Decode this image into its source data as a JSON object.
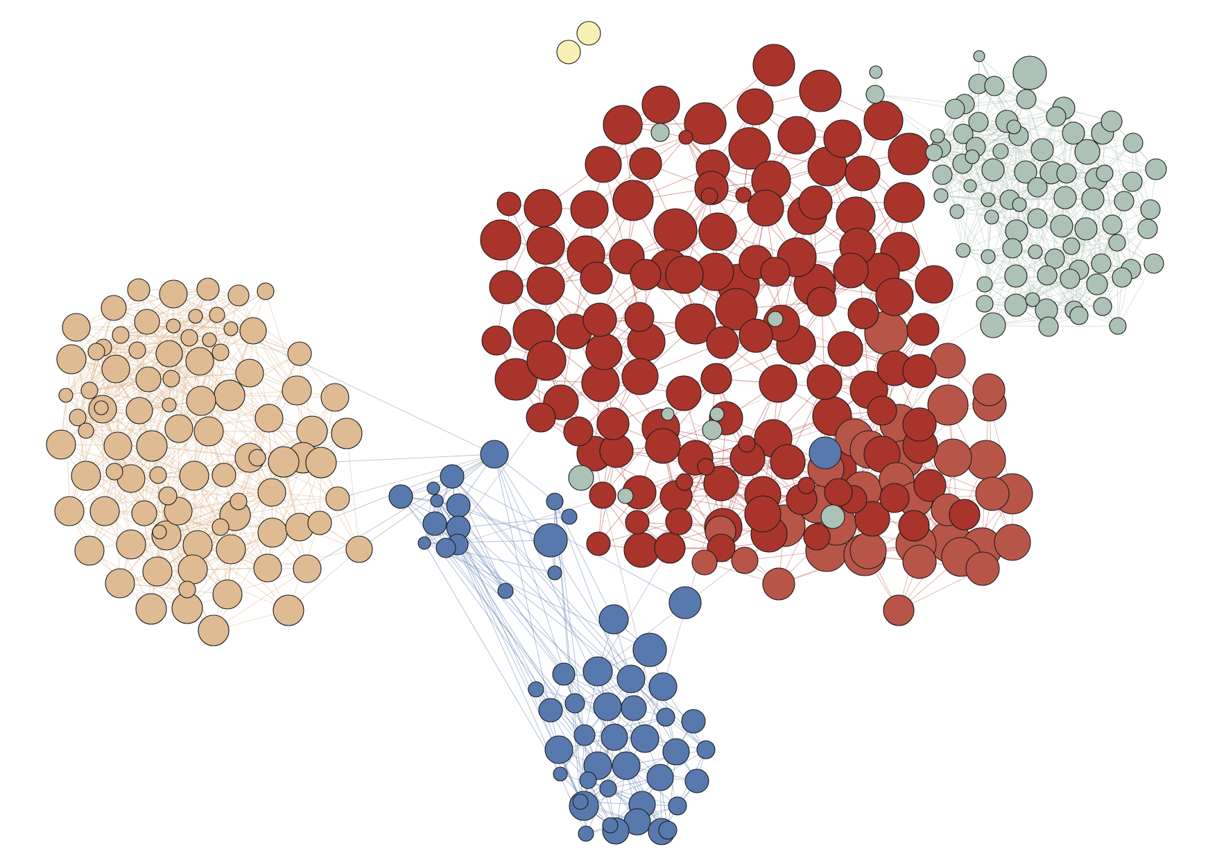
{
  "diagram": {
    "type": "network-graph",
    "edge_style": "thin straight lines colored by source cluster",
    "node_style": "filled circles with thin black outline, sized by degree",
    "clusters": [
      {
        "id": "tan",
        "color": "#dfbb93",
        "edge_color": "#e0b890",
        "node_count": 93
      },
      {
        "id": "dark-red",
        "color": "#a8342c",
        "edge_color": "#b5443c",
        "node_count": 128
      },
      {
        "id": "light-red",
        "color": "#b85549",
        "edge_color": "#c46a5e",
        "node_count": 36
      },
      {
        "id": "sage",
        "color": "#adc2b6",
        "edge_color": "#b7c7be",
        "node_count": 92
      },
      {
        "id": "blue",
        "color": "#5779ae",
        "edge_color": "#6484b6",
        "node_count": 63
      },
      {
        "id": "yellow",
        "color": "#f8f0b4",
        "edge_color": "#e8dfa0",
        "node_count": 2
      }
    ],
    "outline_color": "#1a1a1a",
    "background": "#ffffff"
  }
}
